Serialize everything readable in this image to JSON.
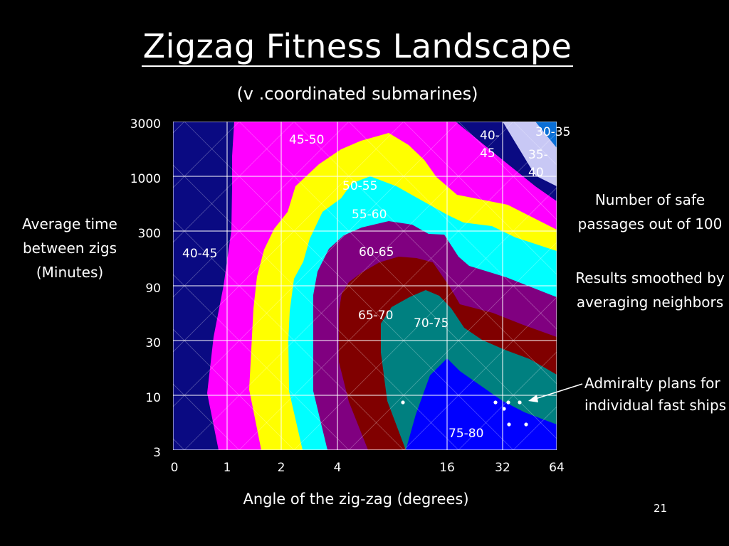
{
  "slide": {
    "title": "Zigzag Fitness Landscape",
    "subtitle": "(v .coordinated submarines)",
    "y_axis_label": "Average time between zigs (Minutes)",
    "x_axis_label": "Angle of the zig-zag (degrees)",
    "note_safe_passages": "Number of safe passages out of 100",
    "note_smoothed": "Results smoothed by averaging neighbors",
    "note_admiralty": "Admiralty plans for individual fast ships",
    "page_number": "21"
  },
  "chart_data": {
    "type": "heatmap",
    "title": "Zigzag Fitness Landscape",
    "subtitle": "(v .coordinated submarines)",
    "xlabel": "Angle of the zig-zag (degrees)",
    "ylabel": "Average time between zigs (Minutes)",
    "x_ticks": [
      "0",
      "1",
      "2",
      "4",
      "16",
      "32",
      "64"
    ],
    "y_ticks": [
      "3000",
      "1000",
      "300",
      "90",
      "30",
      "10",
      "3"
    ],
    "value_label": "Number of safe passages out of 100",
    "grid": true,
    "bands": [
      {
        "label": "30-35",
        "color": "#0a6fd6"
      },
      {
        "label": "35-40",
        "color": "#c8c8f5"
      },
      {
        "label": "40-45",
        "color": "#0a0a82"
      },
      {
        "label": "45-50",
        "color": "#ff00ff"
      },
      {
        "label": "50-55",
        "color": "#ffff00"
      },
      {
        "label": "55-60",
        "color": "#00ffff"
      },
      {
        "label": "60-65",
        "color": "#800080"
      },
      {
        "label": "65-70",
        "color": "#800000"
      },
      {
        "label": "70-75",
        "color": "#008080"
      },
      {
        "label": "75-80",
        "color": "#0000ff"
      }
    ],
    "band_labels": [
      {
        "text": "40-45",
        "band": "40-45"
      },
      {
        "text": "45-50",
        "band": "45-50"
      },
      {
        "text": "50-55",
        "band": "50-55"
      },
      {
        "text": "55-60",
        "band": "55-60"
      },
      {
        "text": "60-65",
        "band": "60-65"
      },
      {
        "text": "65-70",
        "band": "65-70"
      },
      {
        "text": "70-75",
        "band": "70-75"
      },
      {
        "text": "75-80",
        "band": "75-80"
      },
      {
        "text": "40-45",
        "band": "40-45"
      },
      {
        "text": "35-40",
        "band": "35-40"
      },
      {
        "text": "30-35",
        "band": "30-35"
      }
    ],
    "annotation": "Admiralty plans for individual fast ships"
  }
}
